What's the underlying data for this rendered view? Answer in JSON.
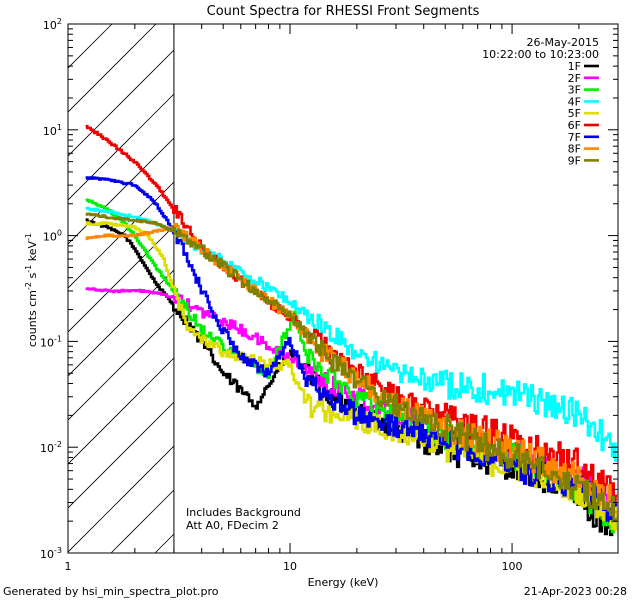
{
  "chart_data": {
    "type": "line",
    "title": "Count Spectra for RHESSI Front Segments",
    "xlabel": "Energy (keV)",
    "ylabel_parts": {
      "main": "counts cm",
      "e1": "-2",
      "s": " s",
      "e2": "-1",
      "kev": " keV",
      "e3": "-1"
    },
    "x_scale": "log",
    "y_scale": "log",
    "xlim": [
      1,
      300
    ],
    "ylim": [
      0.001,
      100
    ],
    "x_ticks": [
      {
        "v": 1,
        "label": "1"
      },
      {
        "v": 10,
        "label": "10"
      },
      {
        "v": 100,
        "label": "100"
      }
    ],
    "y_ticks": [
      {
        "v": 0.001,
        "mant": "10",
        "exp": "-3"
      },
      {
        "v": 0.01,
        "mant": "10",
        "exp": "-2"
      },
      {
        "v": 0.1,
        "mant": "10",
        "exp": "-1"
      },
      {
        "v": 1,
        "mant": "10",
        "exp": "0"
      },
      {
        "v": 10,
        "mant": "10",
        "exp": "1"
      },
      {
        "v": 100,
        "mant": "10",
        "exp": "2"
      }
    ],
    "shaded_region_kev": [
      1,
      3
    ],
    "date": "26-May-2015",
    "time_range": "10:22:00 to 10:23:00",
    "notes": [
      "Includes Background",
      "Att A0, FDecim 2"
    ],
    "series": [
      {
        "name": "1F",
        "color": "#000000",
        "anchors": [
          [
            1.2,
            1.4
          ],
          [
            1.5,
            1.2
          ],
          [
            1.8,
            1.0
          ],
          [
            2.0,
            0.75
          ],
          [
            2.5,
            0.35
          ],
          [
            3.0,
            0.22
          ],
          [
            4.0,
            0.1
          ],
          [
            5.0,
            0.05
          ],
          [
            7.0,
            0.025
          ],
          [
            10.0,
            0.08
          ],
          [
            15.0,
            0.03
          ],
          [
            25.0,
            0.018
          ],
          [
            40.0,
            0.011
          ],
          [
            70.0,
            0.008
          ],
          [
            120.0,
            0.006
          ],
          [
            200.0,
            0.003
          ],
          [
            290.0,
            0.0018
          ]
        ]
      },
      {
        "name": "2F",
        "color": "#ff00ff",
        "anchors": [
          [
            1.2,
            0.32
          ],
          [
            1.5,
            0.3
          ],
          [
            1.8,
            0.3
          ],
          [
            2.2,
            0.3
          ],
          [
            2.6,
            0.28
          ],
          [
            3.0,
            0.26
          ],
          [
            4.0,
            0.19
          ],
          [
            6.0,
            0.13
          ],
          [
            8.0,
            0.09
          ],
          [
            10.0,
            0.07
          ],
          [
            15.0,
            0.04
          ],
          [
            25.0,
            0.025
          ],
          [
            40.0,
            0.017
          ],
          [
            70.0,
            0.011
          ],
          [
            120.0,
            0.008
          ],
          [
            200.0,
            0.005
          ],
          [
            290.0,
            0.003
          ]
        ]
      },
      {
        "name": "3F",
        "color": "#00ee00",
        "anchors": [
          [
            1.2,
            2.2
          ],
          [
            1.5,
            1.8
          ],
          [
            1.8,
            1.3
          ],
          [
            2.0,
            1.0
          ],
          [
            2.5,
            0.5
          ],
          [
            3.0,
            0.3
          ],
          [
            4.0,
            0.13
          ],
          [
            6.0,
            0.07
          ],
          [
            8.0,
            0.05
          ],
          [
            10.5,
            0.18
          ],
          [
            12.0,
            0.07
          ],
          [
            20.0,
            0.03
          ],
          [
            40.0,
            0.015
          ],
          [
            70.0,
            0.01
          ],
          [
            120.0,
            0.007
          ],
          [
            200.0,
            0.004
          ],
          [
            290.0,
            0.002
          ]
        ]
      },
      {
        "name": "4F",
        "color": "#00ffff",
        "anchors": [
          [
            1.2,
            1.8
          ],
          [
            1.5,
            1.7
          ],
          [
            2.0,
            1.5
          ],
          [
            2.5,
            1.3
          ],
          [
            3.0,
            1.1
          ],
          [
            4.0,
            0.75
          ],
          [
            6.0,
            0.45
          ],
          [
            8.0,
            0.32
          ],
          [
            10.0,
            0.24
          ],
          [
            15.0,
            0.12
          ],
          [
            20.0,
            0.08
          ],
          [
            30.0,
            0.05
          ],
          [
            50.0,
            0.04
          ],
          [
            80.0,
            0.035
          ],
          [
            120.0,
            0.03
          ],
          [
            200.0,
            0.02
          ],
          [
            290.0,
            0.01
          ]
        ]
      },
      {
        "name": "5F",
        "color": "#dddd00",
        "anchors": [
          [
            1.2,
            1.3
          ],
          [
            1.5,
            1.3
          ],
          [
            2.0,
            1.2
          ],
          [
            2.3,
            1.0
          ],
          [
            2.7,
            0.6
          ],
          [
            3.0,
            0.3
          ],
          [
            3.5,
            0.13
          ],
          [
            5.0,
            0.08
          ],
          [
            8.0,
            0.06
          ],
          [
            10.0,
            0.06
          ],
          [
            12.0,
            0.025
          ],
          [
            20.0,
            0.018
          ],
          [
            40.0,
            0.012
          ],
          [
            70.0,
            0.008
          ],
          [
            120.0,
            0.006
          ],
          [
            200.0,
            0.004
          ],
          [
            290.0,
            0.0022
          ]
        ]
      },
      {
        "name": "6F",
        "color": "#ee0000",
        "anchors": [
          [
            1.2,
            11.0
          ],
          [
            1.5,
            8.0
          ],
          [
            2.0,
            5.0
          ],
          [
            2.5,
            3.0
          ],
          [
            3.0,
            1.8
          ],
          [
            4.0,
            0.8
          ],
          [
            6.0,
            0.38
          ],
          [
            8.0,
            0.24
          ],
          [
            10.0,
            0.17
          ],
          [
            15.0,
            0.08
          ],
          [
            20.0,
            0.05
          ],
          [
            30.0,
            0.03
          ],
          [
            50.0,
            0.02
          ],
          [
            80.0,
            0.014
          ],
          [
            120.0,
            0.01
          ],
          [
            200.0,
            0.007
          ],
          [
            290.0,
            0.004
          ]
        ]
      },
      {
        "name": "7F",
        "color": "#0000ee",
        "anchors": [
          [
            1.2,
            3.5
          ],
          [
            1.5,
            3.4
          ],
          [
            2.0,
            3.0
          ],
          [
            2.5,
            2.0
          ],
          [
            3.0,
            1.1
          ],
          [
            3.5,
            0.6
          ],
          [
            4.0,
            0.3
          ],
          [
            5.0,
            0.13
          ],
          [
            6.0,
            0.07
          ],
          [
            8.0,
            0.05
          ],
          [
            10.0,
            0.1
          ],
          [
            12.0,
            0.04
          ],
          [
            20.0,
            0.02
          ],
          [
            40.0,
            0.013
          ],
          [
            70.0,
            0.009
          ],
          [
            120.0,
            0.006
          ],
          [
            200.0,
            0.004
          ],
          [
            290.0,
            0.0025
          ]
        ]
      },
      {
        "name": "8F",
        "color": "#ff8800",
        "anchors": [
          [
            1.2,
            0.95
          ],
          [
            1.5,
            1.0
          ],
          [
            2.0,
            1.0
          ],
          [
            2.5,
            1.1
          ],
          [
            3.0,
            1.2
          ],
          [
            4.0,
            0.75
          ],
          [
            6.0,
            0.38
          ],
          [
            8.0,
            0.25
          ],
          [
            10.0,
            0.17
          ],
          [
            15.0,
            0.07
          ],
          [
            20.0,
            0.045
          ],
          [
            30.0,
            0.025
          ],
          [
            50.0,
            0.016
          ],
          [
            80.0,
            0.011
          ],
          [
            120.0,
            0.008
          ],
          [
            200.0,
            0.005
          ],
          [
            290.0,
            0.003
          ]
        ]
      },
      {
        "name": "9F",
        "color": "#808000",
        "anchors": [
          [
            1.2,
            1.6
          ],
          [
            1.5,
            1.5
          ],
          [
            2.0,
            1.4
          ],
          [
            2.5,
            1.3
          ],
          [
            3.0,
            1.1
          ],
          [
            4.0,
            0.75
          ],
          [
            6.0,
            0.38
          ],
          [
            8.0,
            0.25
          ],
          [
            10.0,
            0.17
          ],
          [
            15.0,
            0.07
          ],
          [
            20.0,
            0.04
          ],
          [
            30.0,
            0.025
          ],
          [
            50.0,
            0.015
          ],
          [
            80.0,
            0.01
          ],
          [
            120.0,
            0.007
          ],
          [
            200.0,
            0.004
          ],
          [
            290.0,
            0.0025
          ]
        ]
      }
    ]
  },
  "footer": {
    "generated_by": "Generated by hsi_min_spectra_plot.pro",
    "timestamp": "21-Apr-2023 00:28"
  }
}
